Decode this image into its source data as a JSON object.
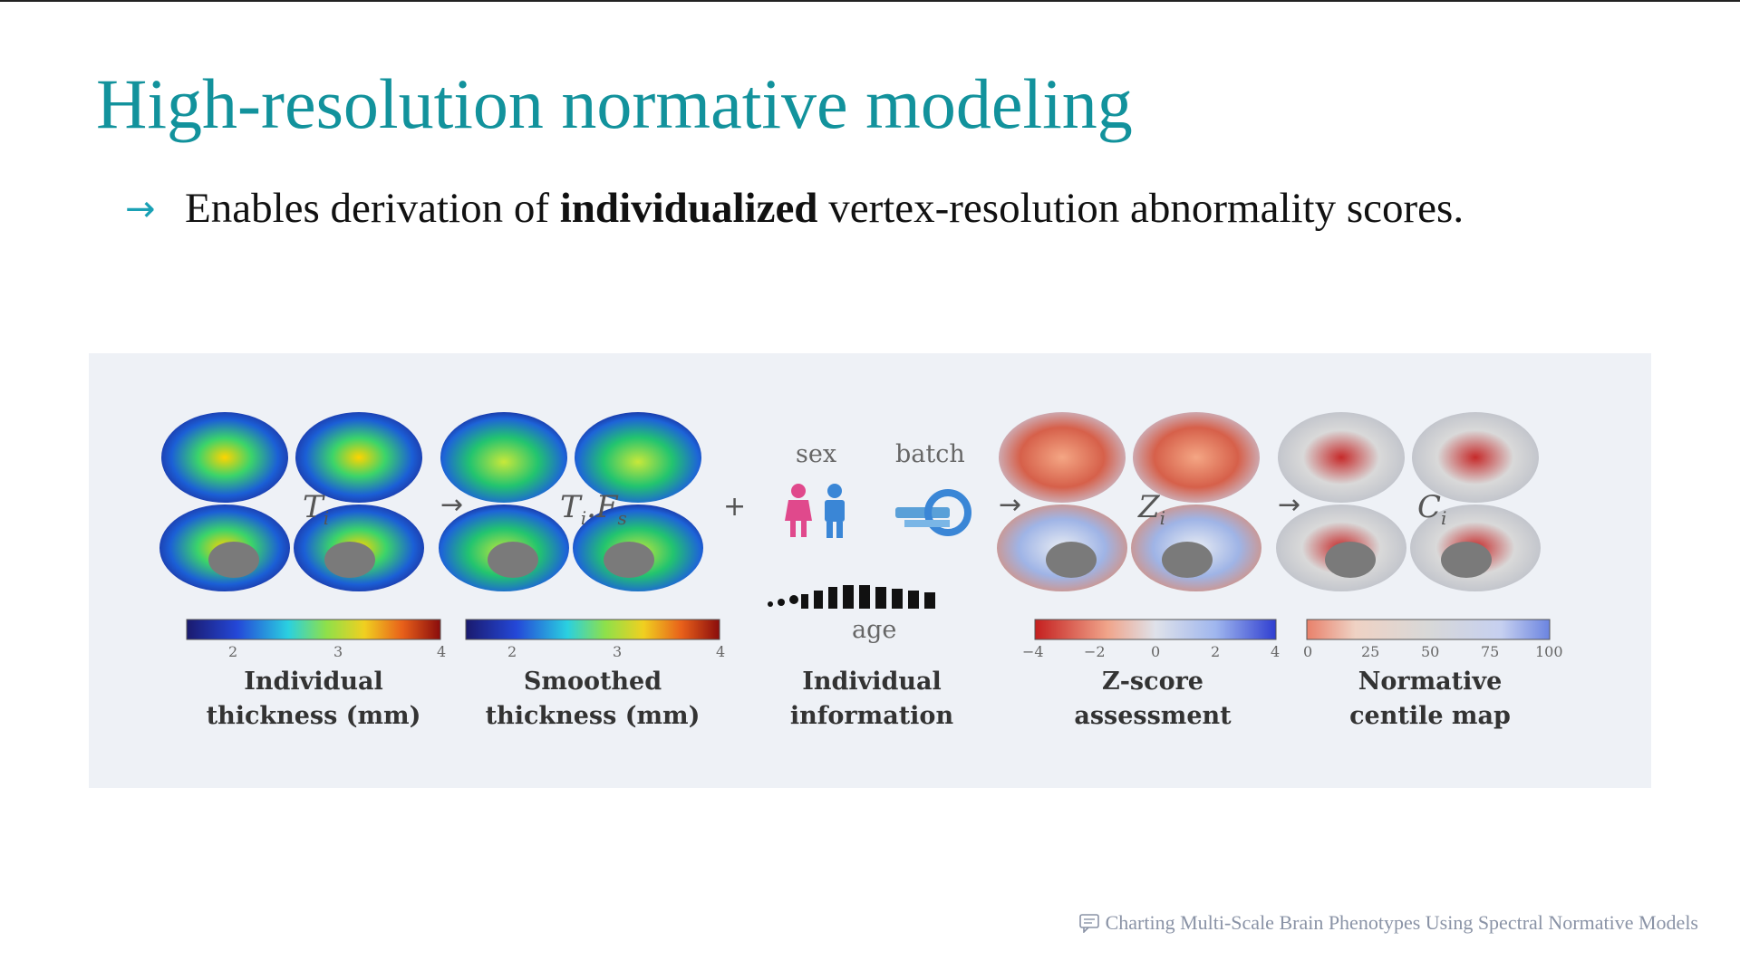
{
  "slide": {
    "title": "High-resolution normative modeling",
    "bullet": {
      "before": "Enables derivation of ",
      "bold": "individualized",
      "after": " vertex-resolution abnormality scores."
    },
    "footer": "Charting Multi-Scale Brain Phenotypes Using Spectral Normative Models"
  },
  "figure": {
    "panels": [
      {
        "symbol": "T",
        "sub": "i",
        "label1": "Individual",
        "label2": "thickness (mm)",
        "ticks": [
          "2",
          "3",
          "4"
        ]
      },
      {
        "symbol": "T",
        "sub": "i",
        "extra": ".F",
        "sub2": "s",
        "label1": "Smoothed",
        "label2": "thickness (mm)",
        "ticks": [
          "2",
          "3",
          "4"
        ]
      },
      {
        "label1": "Individual",
        "label2": "information",
        "sex": "sex",
        "batch": "batch",
        "age": "age"
      },
      {
        "symbol": "Z",
        "sub": "i",
        "label1": "Z-score",
        "label2": "assessment",
        "ticks": [
          "−4",
          "−2",
          "0",
          "2",
          "4"
        ]
      },
      {
        "symbol": "C",
        "sub": "i",
        "label1": "Normative",
        "label2": "centile map",
        "ticks": [
          "0",
          "25",
          "50",
          "75",
          "100"
        ]
      }
    ],
    "operators": [
      "→",
      "+",
      "→",
      "→"
    ]
  },
  "colors": {
    "title": "#12929c",
    "arrow": "#1aa1b5",
    "figure_bg": "#eef1f6"
  }
}
